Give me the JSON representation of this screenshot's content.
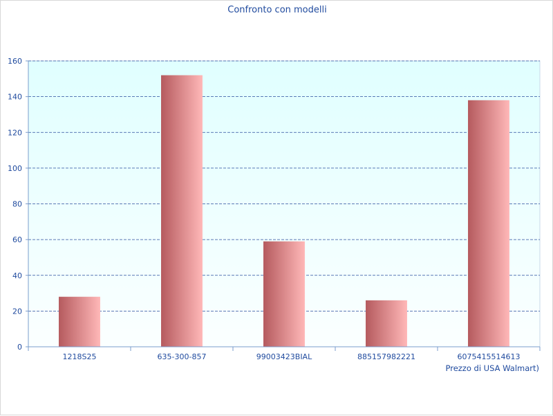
{
  "chart_data": {
    "type": "bar",
    "title": "Confronto con modelli",
    "xlabel": "Prezzo di USA Walmart)",
    "ylabel": "",
    "categories": [
      "1218S25",
      "635-300-857",
      "99003423BIAL",
      "885157982221",
      "6075415514613"
    ],
    "values": [
      28,
      152,
      59,
      26,
      138
    ],
    "ylim": [
      0,
      160
    ],
    "yticks": [
      0,
      20,
      40,
      60,
      80,
      100,
      120,
      140,
      160
    ],
    "grid": true,
    "legend": "none",
    "colors": {
      "plot_background_top": "#e0ffff",
      "plot_background_bottom": "#fbffff",
      "bar_dark": "#b55a5e",
      "bar_light": "#ffb8b8",
      "grid": "#2a4d9e",
      "text": "#1f4a9e",
      "axis": "#7a9ccc"
    }
  }
}
